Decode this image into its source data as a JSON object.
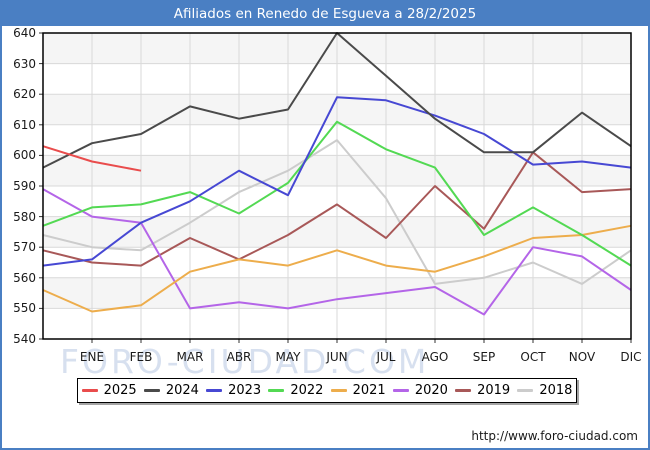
{
  "header": {
    "title": "Afiliados en Renedo de Esgueva a 28/2/2025"
  },
  "watermark": "FORO-CIUDAD.COM",
  "footer": {
    "url": "http://www.foro-ciudad.com"
  },
  "chart_data": {
    "type": "line",
    "title": "Afiliados en Renedo de Esgueva a 28/2/2025",
    "x_categories": [
      "ENE",
      "FEB",
      "MAR",
      "ABR",
      "MAY",
      "JUN",
      "JUL",
      "AGO",
      "SEP",
      "OCT",
      "NOV",
      "DIC"
    ],
    "x_note": "each series has a leading point at the plot left edge equal to the previous year's December value",
    "y_axis": {
      "min": 540,
      "max": 640,
      "tick_step": 10,
      "ticks": [
        640,
        630,
        620,
        610,
        600,
        590,
        580,
        570,
        560,
        550,
        540
      ]
    },
    "grid": true,
    "legend_position": "bottom",
    "series": [
      {
        "name": "2025",
        "color": "#e94c4c",
        "values": [
          603,
          598,
          595
        ]
      },
      {
        "name": "2024",
        "color": "#4a4a4a",
        "values": [
          596,
          604,
          607,
          616,
          612,
          615,
          640,
          626,
          612,
          601,
          601,
          614,
          603
        ]
      },
      {
        "name": "2023",
        "color": "#4748d3",
        "values": [
          564,
          566,
          578,
          585,
          595,
          587,
          619,
          618,
          613,
          607,
          597,
          598,
          596
        ]
      },
      {
        "name": "2022",
        "color": "#53d953",
        "values": [
          577,
          583,
          584,
          588,
          581,
          591,
          611,
          602,
          596,
          574,
          583,
          574,
          564
        ]
      },
      {
        "name": "2021",
        "color": "#edad4c",
        "values": [
          556,
          549,
          551,
          562,
          566,
          564,
          569,
          564,
          562,
          567,
          573,
          574,
          577
        ]
      },
      {
        "name": "2020",
        "color": "#b465e8",
        "values": [
          589,
          580,
          578,
          550,
          552,
          550,
          553,
          555,
          557,
          548,
          570,
          567,
          556
        ]
      },
      {
        "name": "2019",
        "color": "#a85858",
        "values": [
          569,
          565,
          564,
          573,
          566,
          574,
          584,
          573,
          590,
          576,
          601,
          588,
          589
        ]
      },
      {
        "name": "2018",
        "color": "#cccccc",
        "values": [
          574,
          570,
          569,
          578,
          588,
          595,
          605,
          586,
          558,
          560,
          565,
          558,
          569
        ]
      }
    ]
  }
}
